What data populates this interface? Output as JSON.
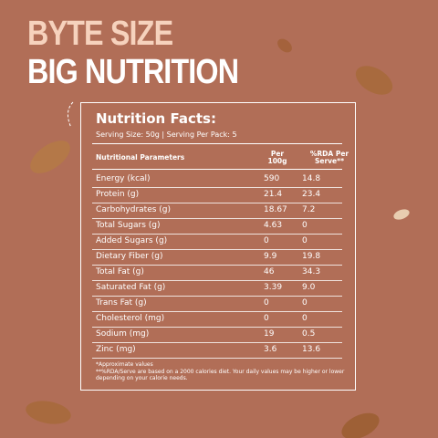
{
  "header": {
    "line1": "BYTE SIZE",
    "line2": "BIG NUTRITION"
  },
  "panel": {
    "title": "Nutrition Facts:",
    "serving": "Serving Size: 50g | Serving Per Pack: 5",
    "columns": [
      "Nutritional Parameters",
      "Per 100g",
      "%RDA Per Serve**"
    ],
    "rows": [
      [
        "Energy (kcal)",
        "590",
        "14.8"
      ],
      [
        "Protein (g)",
        "21.4",
        "23.4"
      ],
      [
        "Carbohydrates (g)",
        "18.67",
        "7.2"
      ],
      [
        "Total Sugars (g)",
        "4.63",
        "0"
      ],
      [
        "Added Sugars (g)",
        "0",
        "0"
      ],
      [
        "Dietary Fiber (g)",
        "9.9",
        "19.8"
      ],
      [
        "Total Fat (g)",
        "46",
        "34.3"
      ],
      [
        "Saturated Fat (g)",
        "3.39",
        "9.0"
      ],
      [
        "Trans Fat (g)",
        "0",
        "0"
      ],
      [
        "Cholesterol (mg)",
        "0",
        "0"
      ],
      [
        "Sodium (mg)",
        "19",
        "0.5"
      ],
      [
        "Zinc (mg)",
        "3.6",
        "13.6"
      ]
    ],
    "notes": [
      "*Approximate values",
      "**%RDA/Serve are based on a 2000 calories diet. Your daily values may be higher or lower depending on your calorie needs."
    ]
  }
}
